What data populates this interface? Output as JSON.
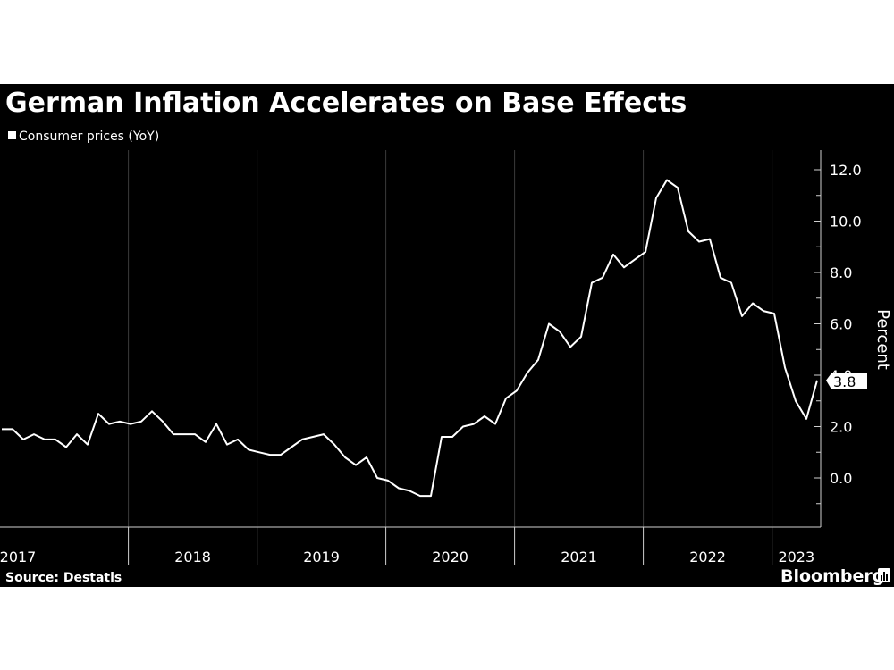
{
  "chart_data": {
    "type": "line",
    "title": "German Inflation Accelerates on Base Effects",
    "series": [
      {
        "name": "Consumer prices (YoY)",
        "color": "#ffffff",
        "x_start": "2017-01",
        "values": [
          1.9,
          1.9,
          1.5,
          1.7,
          1.5,
          1.5,
          1.2,
          1.7,
          1.3,
          2.5,
          2.1,
          2.2,
          2.1,
          2.2,
          2.6,
          2.2,
          1.7,
          1.7,
          1.7,
          1.4,
          2.1,
          1.3,
          1.5,
          1.1,
          1.0,
          0.9,
          0.9,
          1.2,
          1.5,
          1.6,
          1.7,
          1.3,
          0.8,
          0.5,
          0.8,
          0.0,
          -0.1,
          -0.4,
          -0.5,
          -0.7,
          -0.7,
          1.6,
          1.6,
          2.0,
          2.1,
          2.4,
          2.1,
          3.1,
          3.4,
          4.1,
          4.6,
          6.0,
          5.7,
          5.1,
          5.5,
          7.6,
          7.8,
          8.7,
          8.2,
          8.5,
          8.8,
          10.9,
          11.6,
          11.3,
          9.6,
          9.2,
          9.3,
          7.8,
          7.6,
          6.3,
          6.8,
          6.5,
          6.4,
          4.3,
          3.0,
          2.3,
          3.8
        ]
      }
    ],
    "x_ticks": [
      "2017",
      "2018",
      "2019",
      "2020",
      "2021",
      "2022",
      "2023"
    ],
    "y_ticks": [
      "0.0",
      "2.0",
      "4.0",
      "6.0",
      "8.0",
      "10.0",
      "12.0"
    ],
    "ylim": [
      -2.0,
      12.5
    ],
    "ylabel": "Percent",
    "xlabel": "",
    "last_value_label": "3.8",
    "grid": "vertical-year-lines",
    "legend_position": "top-left"
  },
  "footer": {
    "source": "Source: Destatis",
    "brand": "Bloomberg"
  }
}
